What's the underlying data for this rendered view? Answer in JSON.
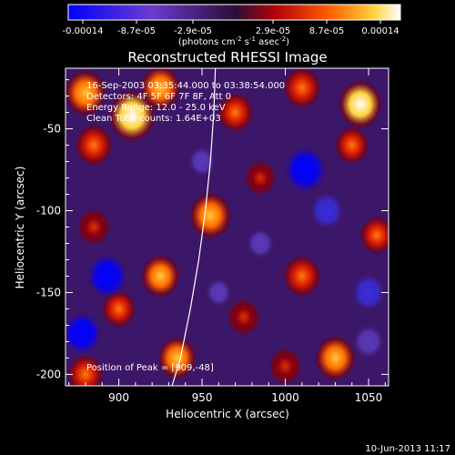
{
  "chart_data": {
    "type": "heatmap",
    "title": "Reconstructed RHESSI Image",
    "xlabel": "Heliocentric X (arcsec)",
    "ylabel": "Heliocentric Y (arcsec)",
    "xlim": [
      868,
      1062
    ],
    "ylim": [
      -207,
      -13
    ],
    "x_ticks": [
      900,
      950,
      1000,
      1050
    ],
    "y_ticks": [
      -50,
      -100,
      -150,
      -200
    ],
    "colorbar": {
      "tick_labels": [
        "-0.00014",
        "-8.7e-05",
        "-2.9e-05",
        "2.9e-05",
        "8.7e-05",
        "0.00014"
      ],
      "range": [
        -0.00014,
        0.00014
      ],
      "unit_label": "(photons cm",
      "unit_exp1": "-2",
      "unit_mid": " s",
      "unit_exp2": "-1",
      "unit_mid2": " asec",
      "unit_exp3": "-2",
      "unit_close": ")"
    },
    "annotations": [
      "16-Sep-2003 03:35:44.000 to 03:38:54.000",
      "Detectors: 4F 5F 6F 7F 8F, Att 0",
      "Energy Range: 12.0 - 25.0 keV",
      "Clean   Total counts: 1.64E+03"
    ],
    "peak_label": "Position of Peak = [909,-48]",
    "limb_curve": [
      [
        958,
        -13
      ],
      [
        957,
        -40
      ],
      [
        955,
        -70
      ],
      [
        952,
        -100
      ],
      [
        948,
        -130
      ],
      [
        943,
        -160
      ],
      [
        937,
        -190
      ],
      [
        932,
        -207
      ]
    ],
    "blobs": [
      {
        "x": 908,
        "y": -42,
        "v": 0.00014
      },
      {
        "x": 880,
        "y": -28,
        "v": 0.00011
      },
      {
        "x": 885,
        "y": -60,
        "v": 8e-05
      },
      {
        "x": 925,
        "y": -25,
        "v": 0.0001
      },
      {
        "x": 970,
        "y": -40,
        "v": 7e-05
      },
      {
        "x": 1010,
        "y": -25,
        "v": 8e-05
      },
      {
        "x": 1045,
        "y": -35,
        "v": 0.00012
      },
      {
        "x": 1040,
        "y": -60,
        "v": 6e-05
      },
      {
        "x": 955,
        "y": -103,
        "v": 0.00011
      },
      {
        "x": 985,
        "y": -80,
        "v": 4e-05
      },
      {
        "x": 925,
        "y": -140,
        "v": 9e-05
      },
      {
        "x": 900,
        "y": -160,
        "v": 6e-05
      },
      {
        "x": 935,
        "y": -190,
        "v": 9e-05
      },
      {
        "x": 1010,
        "y": -140,
        "v": 8e-05
      },
      {
        "x": 1030,
        "y": -190,
        "v": 0.0001
      },
      {
        "x": 975,
        "y": -165,
        "v": 5e-05
      },
      {
        "x": 1055,
        "y": -115,
        "v": 6e-05
      },
      {
        "x": 885,
        "y": -110,
        "v": 5e-05
      },
      {
        "x": 880,
        "y": -200,
        "v": 7e-05
      },
      {
        "x": 1000,
        "y": -195,
        "v": 5e-05
      },
      {
        "x": 1012,
        "y": -75,
        "v": -0.00014
      },
      {
        "x": 1025,
        "y": -100,
        "v": -9e-05
      },
      {
        "x": 893,
        "y": -140,
        "v": -0.00013
      },
      {
        "x": 878,
        "y": -175,
        "v": -0.00012
      },
      {
        "x": 1050,
        "y": -150,
        "v": -9e-05
      },
      {
        "x": 950,
        "y": -70,
        "v": -5e-05
      },
      {
        "x": 985,
        "y": -120,
        "v": -5e-05
      },
      {
        "x": 960,
        "y": -150,
        "v": -4e-05
      },
      {
        "x": 1050,
        "y": -180,
        "v": -7e-05
      }
    ]
  },
  "footer": {
    "timestamp": "10-Jun-2013 11:17"
  },
  "colors": {
    "background": "#000000",
    "text": "#ffffff",
    "limb": "#ffffff"
  }
}
